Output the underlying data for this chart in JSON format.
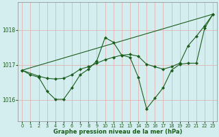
{
  "xlabel": "Graphe pression niveau de la mer (hPa)",
  "bg_color": "#d4eef0",
  "grid_color": "#e0aaaa",
  "line_color": "#1a5c1a",
  "text_color": "#1a5c1a",
  "xlim": [
    -0.5,
    23.5
  ],
  "ylim": [
    1015.4,
    1018.8
  ],
  "yticks": [
    1016,
    1017,
    1018
  ],
  "xticks": [
    0,
    1,
    2,
    3,
    4,
    5,
    6,
    7,
    8,
    9,
    10,
    11,
    12,
    13,
    14,
    15,
    16,
    17,
    18,
    19,
    20,
    21,
    22,
    23
  ],
  "line1_x": [
    0,
    1,
    2,
    3,
    4,
    5,
    6,
    7,
    8,
    9,
    10,
    11,
    12,
    13,
    14,
    15,
    16,
    17,
    18,
    19,
    20,
    21,
    22,
    23
  ],
  "line1_y": [
    1016.85,
    1016.72,
    1016.65,
    1016.25,
    1016.02,
    1016.02,
    1016.35,
    1016.72,
    1016.88,
    1017.12,
    1017.78,
    1017.65,
    1017.28,
    1017.22,
    1016.65,
    1015.75,
    1016.05,
    1016.35,
    1016.85,
    1017.02,
    1017.05,
    1017.05,
    1018.05,
    1018.45
  ],
  "line2_x": [
    0,
    2,
    3,
    4,
    5,
    6,
    7,
    8,
    9,
    10,
    11,
    12,
    13,
    14,
    15,
    16,
    17,
    18,
    19,
    20,
    21,
    22,
    23
  ],
  "line2_y": [
    1016.85,
    1016.68,
    1016.62,
    1016.6,
    1016.62,
    1016.72,
    1016.88,
    1016.95,
    1017.05,
    1017.15,
    1017.22,
    1017.28,
    1017.3,
    1017.25,
    1017.02,
    1016.95,
    1016.88,
    1016.95,
    1017.05,
    1017.55,
    1017.82,
    1018.12,
    1018.45
  ],
  "line3_x": [
    0,
    23
  ],
  "line3_y": [
    1016.85,
    1018.45
  ]
}
